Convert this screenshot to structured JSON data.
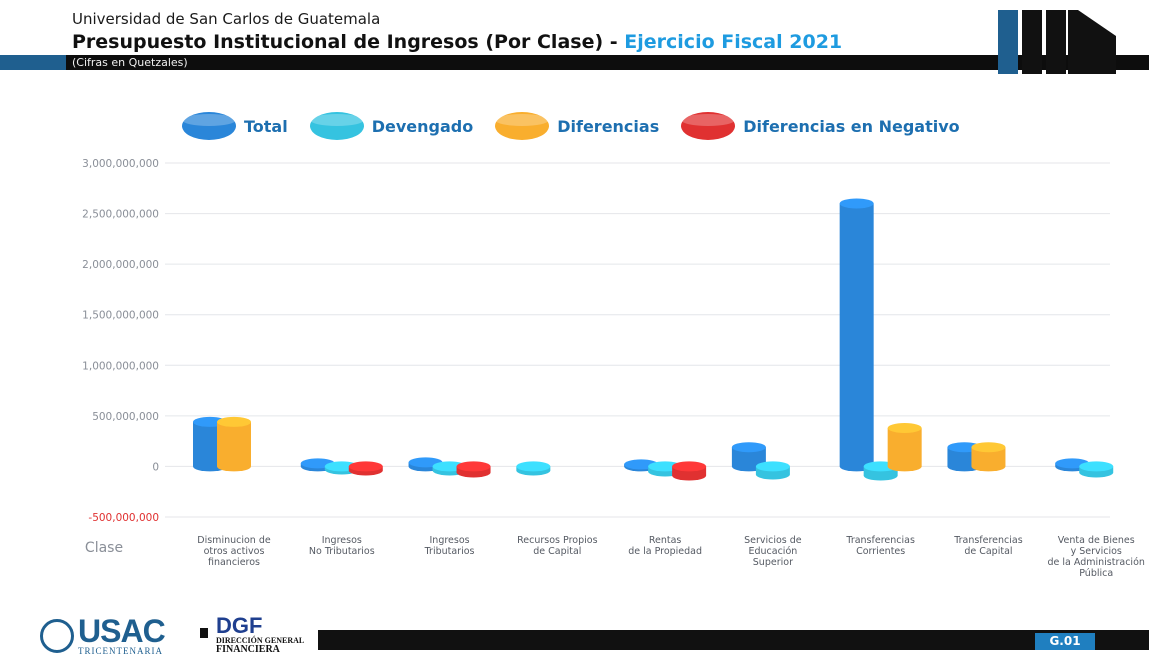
{
  "header": {
    "institution": "Universidad de San Carlos de Guatemala",
    "title_main": "Presupuesto Institucional de Ingresos (Por Clase) -",
    "title_accent": "Ejercicio Fiscal 2021",
    "subtitle": "(Cifras en Quetzales)"
  },
  "footer": {
    "usac_logo": "USAC",
    "usac_sub": "TRICENTENARIA",
    "dgf_logo": "DGF",
    "dgf_sub1": "DIRECCIÓN GENERAL",
    "dgf_sub2": "FINANCIERA",
    "tag": "G.01"
  },
  "chart_data": {
    "type": "bar",
    "xlabel": "Clase",
    "ylabel": "",
    "ylim": [
      -500000000,
      3000000000
    ],
    "yticks": [
      3000000000,
      2500000000,
      2000000000,
      1500000000,
      1000000000,
      500000000,
      0,
      -500000000
    ],
    "ytick_labels": [
      "3,000,000,000",
      "2,500,000,000",
      "2,000,000,000",
      "1,500,000,000",
      "1,000,000,000",
      "500,000,000",
      "0",
      "-500,000,000"
    ],
    "grid": true,
    "legend_position": "top",
    "categories": [
      [
        "Disminucion de",
        "otros activos",
        "financieros"
      ],
      [
        "Ingresos",
        "No Tributarios"
      ],
      [
        "Ingresos",
        "Tributarios"
      ],
      [
        "Recursos Propios",
        "de Capital"
      ],
      [
        "Rentas",
        "de la Propiedad"
      ],
      [
        "Servicios de",
        "Educación",
        "Superior"
      ],
      [
        "Transferencias",
        "Corrientes"
      ],
      [
        "Transferencias",
        "de Capital"
      ],
      [
        "Venta de Bienes",
        "y Servicios",
        "de la Administración",
        "Pública"
      ]
    ],
    "series": [
      {
        "name": "Total",
        "color": "#2a86d9",
        "values": [
          440000000,
          30000000,
          40000000,
          0,
          20000000,
          190000000,
          2600000000,
          190000000,
          30000000
        ]
      },
      {
        "name": "Devengado",
        "color": "#35c3e0",
        "values": [
          0,
          -30000000,
          -40000000,
          -40000000,
          -50000000,
          -80000000,
          -90000000,
          0,
          -60000000
        ]
      },
      {
        "name": "Diferencias",
        "color": "#f9ae2e",
        "values": [
          440000000,
          0,
          0,
          0,
          0,
          0,
          380000000,
          190000000,
          0
        ]
      },
      {
        "name": "Diferencias en Negativo",
        "color": "#e03131",
        "values": [
          0,
          -40000000,
          -60000000,
          0,
          -90000000,
          0,
          0,
          0,
          0
        ]
      }
    ]
  }
}
